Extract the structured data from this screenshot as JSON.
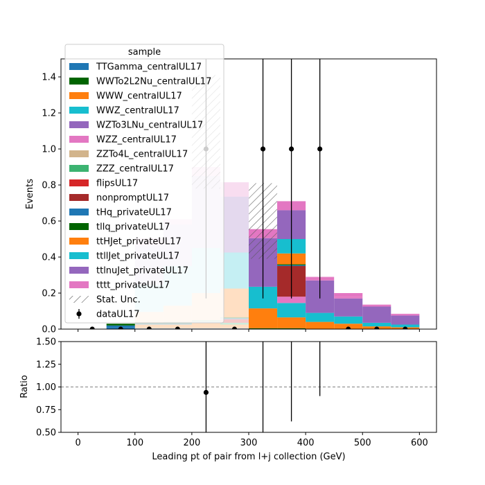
{
  "chart_data": [
    {
      "type": "bar",
      "stacked": true,
      "xlabel": "",
      "ylabel": "Events",
      "xlim": [
        -30,
        630
      ],
      "ylim": [
        0,
        1.5
      ],
      "yticks": [
        0.0,
        0.2,
        0.4,
        0.6,
        0.8,
        1.0,
        1.2,
        1.4
      ],
      "ytick_labels": [
        "0.0",
        "0.2",
        "0.4",
        "0.6",
        "0.8",
        "1.0",
        "1.2",
        "1.4"
      ],
      "xticks": [
        0,
        100,
        200,
        300,
        400,
        500,
        600
      ],
      "bin_edges": [
        0,
        50,
        100,
        150,
        200,
        250,
        300,
        350,
        400,
        450,
        500,
        550,
        600
      ],
      "series": [
        {
          "name": "TTGamma_centralUL17",
          "color": "#1f77b4",
          "values": [
            0,
            0.01,
            0.005,
            0.005,
            0.005,
            0.005,
            0,
            0,
            0,
            0,
            0,
            0
          ]
        },
        {
          "name": "WWTo2L2Nu_centralUL17",
          "color": "#006400",
          "values": [
            0,
            0,
            0,
            0,
            0,
            0,
            0.005,
            0.005,
            0,
            0,
            0,
            0
          ]
        },
        {
          "name": "WWW_centralUL17",
          "color": "#ff7f0e",
          "values": [
            0,
            0,
            0.02,
            0.02,
            0.03,
            0.02,
            0.11,
            0.06,
            0.04,
            0.03,
            0.015,
            0.01
          ]
        },
        {
          "name": "WWZ_centralUL17",
          "color": "#17becf",
          "values": [
            0,
            0,
            0,
            0,
            0,
            0,
            0.12,
            0.08,
            0.05,
            0.04,
            0.02,
            0.015
          ]
        },
        {
          "name": "WZTo3LNu_centralUL17",
          "color": "#9467bd",
          "values": [
            0,
            0,
            0,
            0,
            0,
            0,
            0.27,
            0,
            0.18,
            0.1,
            0.09,
            0.05
          ]
        },
        {
          "name": "WZZ_centralUL17",
          "color": "#e377c2",
          "values": [
            0,
            0,
            0,
            0,
            0,
            0,
            0.05,
            0.035,
            0.015,
            0.01,
            0.006,
            0.005
          ]
        },
        {
          "name": "ZZTo4L_centralUL17",
          "color": "#d2b48c",
          "values": [
            0,
            0,
            0,
            0,
            0,
            0,
            0,
            0,
            0,
            0,
            0,
            0
          ]
        },
        {
          "name": "ZZZ_centralUL17",
          "color": "#3cb371",
          "values": [
            0,
            0,
            0,
            0,
            0,
            0.01,
            0,
            0,
            0,
            0,
            0,
            0
          ]
        },
        {
          "name": "flipsUL17",
          "color": "#d62728",
          "values": [
            0,
            0,
            0,
            0,
            0,
            0.02,
            0,
            0,
            0,
            0,
            0,
            0
          ]
        },
        {
          "name": "nonpromptUL17",
          "color": "#a52a2a",
          "values": [
            0,
            0,
            0,
            0,
            0,
            0,
            0,
            0.17,
            0,
            0,
            0,
            0
          ]
        },
        {
          "name": "tHq_privateUL17",
          "color": "#1f77b4",
          "values": [
            0,
            0.01,
            0.005,
            0.005,
            0.005,
            0.005,
            0,
            0.005,
            0,
            0,
            0,
            0
          ]
        },
        {
          "name": "tllq_privateUL17",
          "color": "#006400",
          "values": [
            0,
            0.01,
            0.005,
            0.01,
            0.01,
            0.005,
            0,
            0.005,
            0,
            0,
            0,
            0
          ]
        },
        {
          "name": "ttHJet_privateUL17",
          "color": "#ff7f0e",
          "values": [
            0,
            0,
            0.06,
            0.09,
            0.15,
            0.16,
            0,
            0.06,
            0,
            0,
            0,
            0
          ]
        },
        {
          "name": "ttllJet_privateUL17",
          "color": "#17becf",
          "values": [
            0,
            0,
            0.15,
            0.22,
            0.25,
            0.2,
            0,
            0.08,
            0,
            0,
            0,
            0
          ]
        },
        {
          "name": "ttlnuJet_privateUL17",
          "color": "#9467bd",
          "values": [
            0,
            0,
            0.22,
            0.23,
            0.4,
            0.31,
            0,
            0.16,
            0,
            0,
            0,
            0
          ]
        },
        {
          "name": "tttt_privateUL17",
          "color": "#e377c2",
          "values": [
            0,
            0,
            0.04,
            0.03,
            0.05,
            0.08,
            0,
            0.05,
            0.005,
            0.02,
            0.005,
            0.005
          ]
        }
      ],
      "faded_bins": [
        2,
        3,
        4,
        5
      ],
      "stat_unc": {
        "name": "Stat. Unc.",
        "bins": [
          {
            "bin": 4,
            "low": 0.78,
            "high": 1.41
          },
          {
            "bin": 6,
            "low": 0.39,
            "high": 0.81
          }
        ]
      },
      "data": {
        "name": "dataUL17",
        "x": [
          25,
          75,
          125,
          175,
          225,
          275,
          325,
          375,
          425,
          475,
          525,
          575
        ],
        "y": [
          0,
          0,
          0,
          0,
          1,
          0,
          1,
          1,
          1,
          0,
          0,
          0
        ],
        "err_low": [
          0,
          0,
          0,
          0,
          0.83,
          0,
          0.83,
          0.83,
          0.83,
          0,
          0,
          0
        ],
        "err_high": [
          0,
          0,
          0,
          0,
          2.3,
          0,
          2.3,
          2.3,
          2.3,
          0,
          0,
          0
        ]
      },
      "legend": {
        "title": "sample",
        "placement": "upper-left"
      }
    },
    {
      "type": "scatter",
      "xlabel": "Leading pt of pair from l+j collection (GeV)",
      "ylabel": "Ratio",
      "xlim": [
        -30,
        630
      ],
      "ylim": [
        0.5,
        1.5
      ],
      "yticks": [
        0.5,
        0.75,
        1.0,
        1.25,
        1.5
      ],
      "ytick_labels": [
        "0.50",
        "0.75",
        "1.00",
        "1.25",
        "1.50"
      ],
      "xticks": [
        0,
        100,
        200,
        300,
        400,
        500,
        600
      ],
      "xtick_labels": [
        "0",
        "100",
        "200",
        "300",
        "400",
        "500",
        "600"
      ],
      "reference_line": 1.0,
      "points": [
        {
          "x": 225,
          "y": 0.94,
          "low": 0.1,
          "high": 2.5
        }
      ],
      "error_bars_only": [
        {
          "x": 325,
          "low": 0.1,
          "high": 2.5
        },
        {
          "x": 375,
          "low": 0.62,
          "high": 2.5
        },
        {
          "x": 425,
          "low": 0.9,
          "high": 2.5
        }
      ]
    }
  ]
}
